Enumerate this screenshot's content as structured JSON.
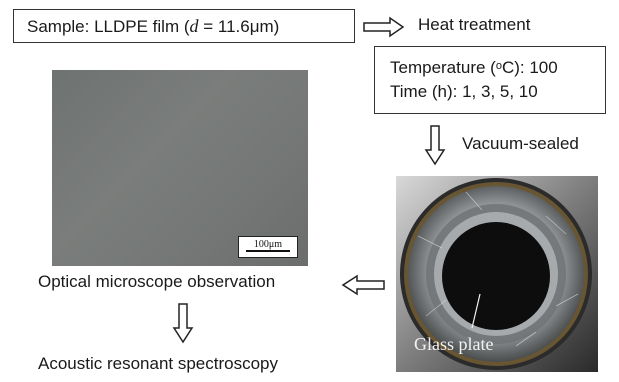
{
  "sample": {
    "prefix": "Sample: LLDPE film (",
    "var": "d",
    "suffix": " = 11.6μm)"
  },
  "heat_treatment": "Heat treatment",
  "conditions": {
    "temp_label": "Temperature (",
    "temp_unit_sup": "o",
    "temp_unit": "C): 100",
    "time": "Time (h): 1, 3, 5, 10"
  },
  "vacuum": "Vacuum-sealed",
  "microscope": {
    "scale_label": "100μm"
  },
  "photo": {
    "glass_label": "Glass plate"
  },
  "optical": "Optical microscope observation",
  "acoustic": "Acoustic resonant spectroscopy"
}
